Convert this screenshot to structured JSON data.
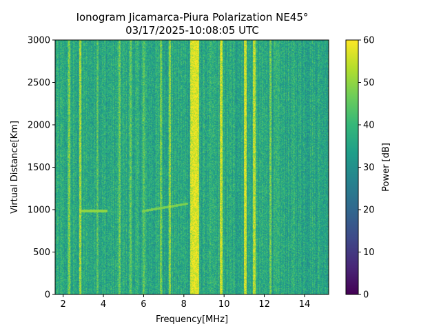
{
  "chart_data": {
    "type": "heatmap",
    "title": "Ionogram Jicamarca-Piura Polarization NE45°",
    "subtitle": "03/17/2025-10:08:05 UTC",
    "xlabel": "Frequency[MHz]",
    "ylabel": "Virtual Distance[Km]",
    "xlim": [
      1.6,
      15.2
    ],
    "ylim": [
      0,
      3000
    ],
    "x_ticks": [
      2,
      4,
      6,
      8,
      10,
      12,
      14
    ],
    "y_ticks": [
      0,
      500,
      1000,
      1500,
      2000,
      2500,
      3000
    ],
    "colorbar": {
      "label": "Power [dB]",
      "range": [
        0,
        60
      ],
      "ticks": [
        0,
        10,
        20,
        30,
        40,
        50,
        60
      ],
      "colormap": "viridis"
    },
    "background_power_db": 36,
    "strong_bands": [
      {
        "freq_mhz": 2.3,
        "power_db": 48
      },
      {
        "freq_mhz": 2.85,
        "power_db": 52
      },
      {
        "freq_mhz": 3.7,
        "power_db": 44
      },
      {
        "freq_mhz": 4.8,
        "power_db": 46
      },
      {
        "freq_mhz": 5.35,
        "power_db": 45
      },
      {
        "freq_mhz": 6.0,
        "power_db": 44
      },
      {
        "freq_mhz": 6.85,
        "power_db": 47
      },
      {
        "freq_mhz": 7.3,
        "power_db": 50
      },
      {
        "freq_mhz": 8.55,
        "power_db": 58
      },
      {
        "freq_mhz": 9.85,
        "power_db": 55
      },
      {
        "freq_mhz": 11.05,
        "power_db": 56
      },
      {
        "freq_mhz": 11.5,
        "power_db": 54
      },
      {
        "freq_mhz": 12.3,
        "power_db": 47
      }
    ],
    "echo_traces": [
      {
        "freq_mhz": [
          2.8,
          4.2
        ],
        "distance_km": [
          985,
          985
        ],
        "power_db": 50
      },
      {
        "freq_mhz": [
          5.9,
          8.2
        ],
        "distance_km": [
          980,
          1070
        ],
        "power_db": 48
      }
    ]
  }
}
